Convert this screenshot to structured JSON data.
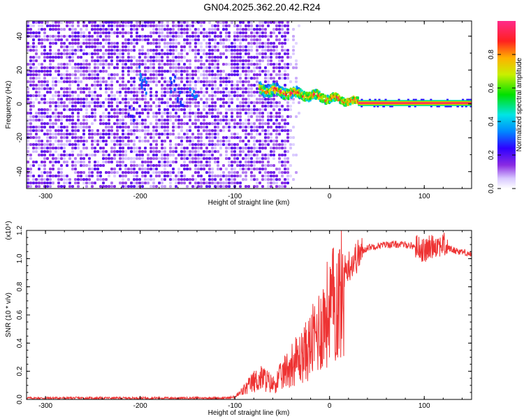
{
  "figure": {
    "title": "GN04.2025.362.20.42.R24"
  },
  "chart_data": [
    {
      "type": "heatmap",
      "xlabel": "Height of straight line (km)",
      "ylabel": "Frequency (Hz)",
      "xlim": [
        -320,
        150
      ],
      "ylim": [
        -50,
        49
      ],
      "xticks": [
        -300,
        -200,
        -100,
        0,
        100
      ],
      "yticks": [
        -40,
        -20,
        0,
        20,
        40
      ],
      "grid": false,
      "colorbar": {
        "label": "Normalized spectral amplitude",
        "range": [
          0,
          1
        ],
        "ticks": [
          "0.0",
          "0.2",
          "0.4",
          "0.6",
          "0.8"
        ],
        "colormap": "rainbow (white-violet-blue-cyan-green-yellow-red-magenta)"
      },
      "regions": [
        {
          "x_range": [
            -320,
            -45
          ],
          "frequency_range": [
            -50,
            49
          ],
          "normalized_amplitude": [
            0.05,
            0.2
          ],
          "description_value": "broadband noise"
        },
        {
          "x_range": [
            -45,
            -30
          ],
          "frequency_range": [
            -50,
            49
          ],
          "normalized_amplitude": [
            0.0,
            0.05
          ]
        },
        {
          "x_range": [
            -75,
            30
          ],
          "frequency_center": [
            9,
            1
          ],
          "normalized_amplitude": [
            0.3,
            1.0
          ]
        },
        {
          "x_range": [
            30,
            150
          ],
          "frequency_center": 0.5,
          "normalized_amplitude": 1.0
        }
      ]
    },
    {
      "type": "line",
      "xlabel": "Height of straight line (km)",
      "ylabel": "SNR (10 * v/v)",
      "y_multiplier_label": "(x10⁴)",
      "xlim": [
        -320,
        150
      ],
      "ylim": [
        0,
        1.2
      ],
      "xticks": [
        -300,
        -200,
        -100,
        0,
        100
      ],
      "yticks": [
        "0.0",
        "0.2",
        "0.4",
        "0.6",
        "0.8",
        "1.0",
        "1.2"
      ],
      "grid": false,
      "series": [
        {
          "color": "#ee3333",
          "x": [
            -320,
            -250,
            -200,
            -150,
            -110,
            -100,
            -90,
            -80,
            -70,
            -60,
            -50,
            -40,
            -30,
            -20,
            -10,
            0,
            10,
            20,
            30,
            40,
            60,
            80,
            95,
            100,
            110,
            120,
            130,
            140,
            150
          ],
          "y": [
            0.01,
            0.01,
            0.01,
            0.01,
            0.01,
            0.02,
            0.08,
            0.15,
            0.18,
            0.12,
            0.2,
            0.3,
            0.35,
            0.45,
            0.6,
            0.75,
            0.85,
            0.95,
            1.02,
            1.08,
            1.1,
            1.1,
            1.08,
            1.05,
            1.1,
            1.1,
            1.06,
            1.05,
            1.03
          ]
        }
      ]
    }
  ]
}
